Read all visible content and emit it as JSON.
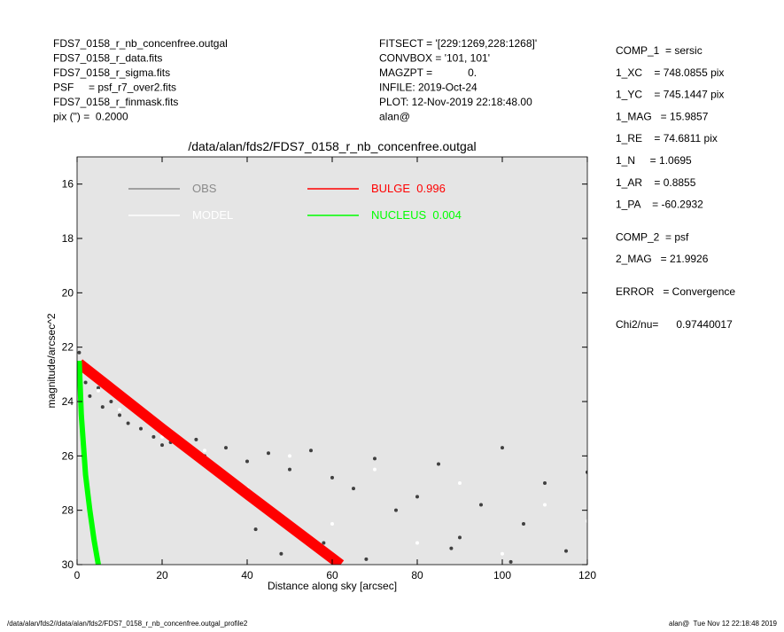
{
  "header": {
    "left": [
      "FDS7_0158_r_nb_concenfree.outgal",
      "FDS7_0158_r_data.fits",
      "FDS7_0158_r_sigma.fits",
      "PSF     = psf_r7_over2.fits",
      "FDS7_0158_r_finmask.fits",
      "pix (\") =  0.2000"
    ],
    "middle": [
      "FITSECT = '[229:1269,228:1268]'",
      "CONVBOX = '101, 101'",
      "MAGZPT =            0.",
      "INFILE: 2019-Oct-24",
      "PLOT: 12-Nov-2019 22:18:48.00",
      "alan@"
    ]
  },
  "panel": [
    [
      "COMP_1  = sersic",
      "1_XC    = 748.0855 pix",
      "1_YC    = 745.1447 pix",
      "1_MAG   = 15.9857",
      "1_RE    = 74.6811 pix",
      "1_N     = 1.0695",
      "1_AR    = 0.8855",
      "1_PA    = -60.2932"
    ],
    [
      "COMP_2  = psf",
      "2_MAG   = 21.9926"
    ],
    [
      "ERROR   = Convergence"
    ],
    [
      "Chi2/nu=      0.97440017"
    ]
  ],
  "footer": {
    "left": "/data/alan/fds2//data/alan/fds2/FDS7_0158_r_nb_concenfree.outgal_profile2",
    "right": "alan@  Tue Nov 12 22:18:48 2019"
  },
  "chart_data": {
    "type": "scatter",
    "title": "/data/alan/fds2/FDS7_0158_r_nb_concenfree.outgal",
    "x_label": "Distance along sky [arcsec]",
    "y_label": "magnitude/arcsec^2",
    "xlim": [
      0,
      120
    ],
    "xticks": [
      0,
      20,
      40,
      60,
      80,
      100,
      120
    ],
    "ylim": [
      15,
      30
    ],
    "yticks": [
      16,
      18,
      20,
      22,
      24,
      26,
      28,
      30
    ],
    "y_inverted": true,
    "series": [
      {
        "name": "OBS",
        "color": "#404040",
        "legend_color": "#8a8a8a",
        "mode": "markers",
        "x": [
          0.5,
          1,
          2,
          3,
          5,
          6,
          8,
          10,
          12,
          15,
          18,
          20,
          22,
          25,
          28,
          30,
          35,
          40,
          45,
          50,
          55,
          60,
          65,
          70,
          75,
          80,
          85,
          90,
          95,
          100,
          105,
          110,
          115,
          120,
          42,
          48,
          58,
          68,
          88,
          102
        ],
        "values": [
          22.2,
          22.8,
          23.3,
          23.8,
          23.5,
          24.2,
          24.0,
          24.5,
          24.8,
          25.0,
          25.3,
          25.6,
          25.5,
          25.6,
          25.4,
          26.0,
          25.7,
          26.2,
          25.9,
          26.5,
          25.8,
          26.8,
          27.2,
          26.1,
          28.0,
          27.5,
          26.3,
          29.0,
          27.8,
          25.7,
          28.5,
          27.0,
          29.5,
          26.6,
          28.7,
          29.6,
          29.2,
          29.8,
          29.4,
          29.9
        ]
      },
      {
        "name": "MODEL",
        "color": "#ffffff",
        "legend_color": "#ffffff",
        "mode": "markers",
        "x": [
          1,
          5,
          10,
          20,
          30,
          50,
          70,
          90,
          110,
          120,
          60,
          80,
          100,
          40
        ],
        "values": [
          22.9,
          23.6,
          24.3,
          25.3,
          25.8,
          26.0,
          26.5,
          27.0,
          27.8,
          28.4,
          28.5,
          29.2,
          29.6,
          27.2
        ]
      },
      {
        "name": "BULGE  0.996",
        "color": "#ff0000",
        "legend_color": "#ff0000",
        "mode": "line",
        "x": [
          0.5,
          20,
          40,
          62
        ],
        "values": [
          22.6,
          25.0,
          27.4,
          30.0
        ]
      },
      {
        "name": "NUCLEUS  0.004",
        "color": "#00ff00",
        "legend_color": "#00ff00",
        "mode": "line",
        "x": [
          0.5,
          1,
          2,
          3,
          4,
          5
        ],
        "values": [
          22.5,
          24.5,
          26.7,
          28.0,
          29.1,
          30.0
        ]
      }
    ]
  }
}
